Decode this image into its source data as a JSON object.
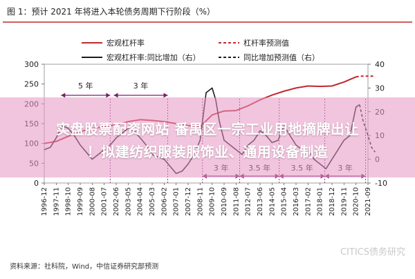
{
  "chart_data": {
    "type": "line",
    "title": "图 1：预计 2021 年将进入本轮债务周期下行阶段（%）",
    "colors": {
      "red": "#c0272d",
      "black": "#1a1a1a",
      "purple": "#7b1d6b"
    },
    "legend": {
      "items": [
        {
          "label": "宏观杠杆率",
          "color": "#c0272d",
          "dash": false
        },
        {
          "label": "杠杆率预测值",
          "color": "#c0272d",
          "dash": true
        },
        {
          "label": "宏观杠杆率:同比增加（右）",
          "color": "#1a1a1a",
          "dash": false
        },
        {
          "label": "同比增加预测值（右）",
          "color": "#1a1a1a",
          "dash": true
        }
      ]
    },
    "y_left": {
      "ticks": [
        "300",
        "250",
        "200",
        "150",
        "100",
        "50",
        "0"
      ],
      "ylim": [
        0,
        300
      ]
    },
    "y_right": {
      "ticks": [
        "40",
        "30",
        "20",
        "10",
        "0",
        "-10"
      ],
      "ylim": [
        -10,
        40
      ]
    },
    "x_labels": [
      "1996-12",
      "1997-11",
      "1998-10",
      "1999-09",
      "2000-08",
      "2001-07",
      "2002-06",
      "2003-05",
      "2004-04",
      "2005-03",
      "2006-02",
      "2007-01",
      "2007-12",
      "2008-11",
      "2009-10",
      "2010-09",
      "2011-08",
      "2012-07",
      "2013-06",
      "2014-05",
      "2015-04",
      "2016-03",
      "2017-02",
      "2018-01",
      "2018-12",
      "2019-11",
      "2020-10",
      "2021-09"
    ],
    "series": [
      {
        "name": "宏观杠杆率",
        "axis": "left",
        "x": [
          0,
          1,
          2,
          3,
          4,
          5,
          6,
          7,
          8,
          9,
          10,
          11,
          12,
          13,
          14,
          15,
          16,
          17,
          18,
          19,
          20,
          21,
          22,
          23,
          24,
          25,
          26
        ],
        "values": [
          100,
          105,
          118,
          130,
          138,
          142,
          147,
          155,
          160,
          158,
          155,
          150,
          145,
          142,
          172,
          182,
          183,
          195,
          210,
          222,
          232,
          240,
          245,
          244,
          245,
          255,
          268
        ]
      },
      {
        "name": "杠杆率预测值",
        "axis": "left",
        "x": [
          26,
          26.5,
          27,
          27.5
        ],
        "values": [
          268,
          270,
          270,
          270
        ]
      },
      {
        "name": "宏观杠杆率:同比增加（右）",
        "axis": "right",
        "x": [
          0,
          0.5,
          1,
          1.5,
          2,
          2.5,
          3,
          3.5,
          4,
          4.5,
          5,
          5.5,
          6,
          6.5,
          7,
          7.5,
          8,
          8.5,
          9,
          9.5,
          10,
          10.5,
          11,
          11.5,
          12,
          12.5,
          13,
          13.5,
          14,
          14.3,
          14.6,
          15,
          15.5,
          16,
          16.5,
          17,
          17.5,
          18,
          18.5,
          19,
          19.5,
          20,
          20.5,
          21,
          21.5,
          22,
          22.5,
          23,
          23.5,
          24,
          24.5,
          25,
          25.5,
          26,
          26.3
        ],
        "values": [
          4,
          5,
          9,
          14,
          13,
          10,
          6,
          3,
          0,
          2,
          4,
          6,
          9,
          11,
          13,
          12,
          9,
          6,
          2,
          1,
          0,
          -3,
          -6,
          -5,
          -2,
          2,
          8,
          28,
          30,
          25,
          16,
          8,
          6,
          4,
          2,
          6,
          8,
          12,
          10,
          7,
          8,
          14,
          10,
          6,
          4,
          4,
          0,
          -2,
          -4,
          0,
          4,
          8,
          10,
          22,
          23
        ]
      },
      {
        "name": "同比增加预测值（右）",
        "axis": "right",
        "x": [
          26.3,
          26.6,
          27,
          27.3,
          27.6
        ],
        "values": [
          23,
          16,
          10,
          5,
          3
        ]
      }
    ],
    "annotations": {
      "period_labels": [
        "5 年",
        "3 年",
        "3 年",
        "3.5 年",
        "3.5 年",
        "3 年"
      ]
    }
  },
  "source": "资料来源：社科院，Wind，中信证券研究部预测",
  "watermark": "CITICS债务研究",
  "overlay": {
    "line1": "实盘股票配资网站 番禺区一宗工业用地摘牌出让",
    "line2": "！拟建纺织服装服饰业、通用设备制造"
  }
}
